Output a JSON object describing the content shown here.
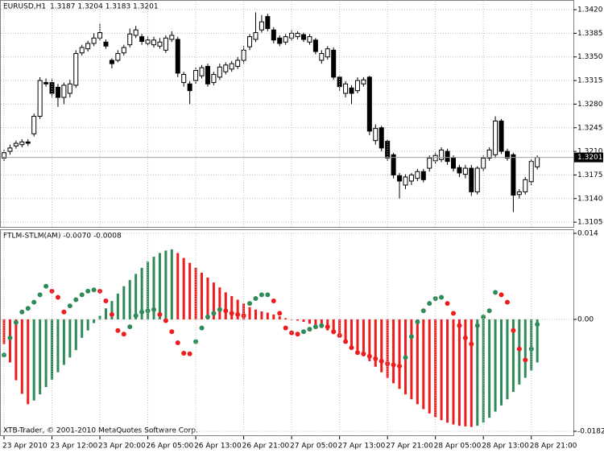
{
  "chart_data": [
    {
      "type": "candlestick",
      "title": "EURUSD,H1",
      "ohlc_label": "1.3187 1.3204 1.3183 1.3201",
      "bull_color": "#ffffff",
      "bear_color": "#000000",
      "last_price": 1.3201,
      "ylim": [
        1.3098,
        1.3432
      ],
      "yticks": [
        1.3105,
        {
          "value": 1.314,
          "label": "1.3140"
        },
        1.3175,
        {
          "value": 1.321,
          "label": "1.3210"
        },
        1.3245,
        {
          "value": 1.328,
          "label": "1.3280"
        },
        1.3315,
        {
          "value": 1.335,
          "label": "1.3350"
        },
        1.3385,
        {
          "value": 1.342,
          "label": "1.3420"
        }
      ],
      "grid": true,
      "open": [
        1.32,
        1.321,
        1.3218,
        1.322,
        1.3224,
        1.3236,
        1.3262,
        1.3312,
        1.3312,
        1.3305,
        1.329,
        1.3296,
        1.3308,
        1.3356,
        1.3362,
        1.337,
        1.3378,
        1.3372,
        1.3345,
        1.3345,
        1.3356,
        1.3368,
        1.3382,
        1.338,
        1.337,
        1.3368,
        1.3366,
        1.336,
        1.3376,
        1.3376,
        1.3312,
        1.331,
        1.3315,
        1.3322,
        1.3336,
        1.3312,
        1.332,
        1.3328,
        1.3332,
        1.3336,
        1.3345,
        1.3365,
        1.3376,
        1.339,
        1.341,
        1.339,
        1.3378,
        1.3372,
        1.3378,
        1.338,
        1.3383,
        1.3372,
        1.3375,
        1.3345,
        1.335,
        1.336,
        1.332,
        1.3296,
        1.3304,
        1.33,
        1.331,
        1.332,
        1.3226,
        1.3245,
        1.3225,
        1.3205,
        1.3174,
        1.316,
        1.3166,
        1.317,
        1.318,
        1.3185,
        1.3196,
        1.3198,
        1.321,
        1.32,
        1.3186,
        1.3176,
        1.3185,
        1.315,
        1.3185,
        1.32,
        1.3205,
        1.3255,
        1.321,
        1.3205,
        1.3146,
        1.315,
        1.3165,
        1.3187
      ],
      "high": [
        1.3212,
        1.322,
        1.3226,
        1.3228,
        1.3228,
        1.3266,
        1.332,
        1.3318,
        1.3318,
        1.331,
        1.3312,
        1.3316,
        1.336,
        1.3368,
        1.3374,
        1.3385,
        1.34,
        1.3376,
        1.3348,
        1.336,
        1.3368,
        1.3392,
        1.3396,
        1.3384,
        1.338,
        1.338,
        1.3378,
        1.3382,
        1.3388,
        1.338,
        1.3328,
        1.3314,
        1.3334,
        1.3338,
        1.334,
        1.3328,
        1.334,
        1.3342,
        1.3344,
        1.335,
        1.3366,
        1.3384,
        1.3416,
        1.3412,
        1.3414,
        1.3394,
        1.3382,
        1.3384,
        1.339,
        1.3388,
        1.3386,
        1.3384,
        1.3378,
        1.336,
        1.3366,
        1.3364,
        1.3322,
        1.3314,
        1.3308,
        1.332,
        1.332,
        1.3322,
        1.325,
        1.3248,
        1.3228,
        1.3208,
        1.3178,
        1.3176,
        1.3178,
        1.3184,
        1.3184,
        1.3204,
        1.3208,
        1.3216,
        1.3214,
        1.3204,
        1.319,
        1.319,
        1.319,
        1.3188,
        1.3204,
        1.3216,
        1.3262,
        1.3258,
        1.3214,
        1.3208,
        1.3154,
        1.3172,
        1.3198,
        1.3204
      ],
      "low": [
        1.3195,
        1.3205,
        1.3214,
        1.3216,
        1.3218,
        1.3232,
        1.3258,
        1.3306,
        1.329,
        1.3276,
        1.328,
        1.329,
        1.3304,
        1.3352,
        1.3358,
        1.3366,
        1.3374,
        1.3362,
        1.3333,
        1.3342,
        1.3352,
        1.3364,
        1.3378,
        1.3368,
        1.3366,
        1.3364,
        1.3362,
        1.3356,
        1.3372,
        1.332,
        1.3306,
        1.328,
        1.331,
        1.3318,
        1.3306,
        1.3308,
        1.3316,
        1.3324,
        1.3328,
        1.3332,
        1.334,
        1.336,
        1.3372,
        1.3386,
        1.3388,
        1.337,
        1.3366,
        1.3368,
        1.3374,
        1.3376,
        1.3372,
        1.3368,
        1.3354,
        1.334,
        1.3346,
        1.3316,
        1.33,
        1.329,
        1.328,
        1.3296,
        1.3306,
        1.3234,
        1.322,
        1.321,
        1.3196,
        1.317,
        1.314,
        1.3154,
        1.316,
        1.3166,
        1.3164,
        1.318,
        1.3192,
        1.3194,
        1.319,
        1.318,
        1.3172,
        1.317,
        1.3144,
        1.3146,
        1.318,
        1.3196,
        1.32,
        1.3206,
        1.3196,
        1.312,
        1.314,
        1.3146,
        1.316,
        1.3183
      ],
      "close": [
        1.3208,
        1.3215,
        1.3222,
        1.3224,
        1.3222,
        1.3262,
        1.3315,
        1.331,
        1.3296,
        1.329,
        1.3308,
        1.331,
        1.3355,
        1.3364,
        1.337,
        1.3378,
        1.3386,
        1.3366,
        1.334,
        1.3355,
        1.3364,
        1.3384,
        1.339,
        1.3373,
        1.3375,
        1.3375,
        1.3372,
        1.3378,
        1.3382,
        1.3326,
        1.3324,
        1.33,
        1.333,
        1.3334,
        1.331,
        1.3324,
        1.3335,
        1.3338,
        1.334,
        1.3345,
        1.336,
        1.338,
        1.3386,
        1.3402,
        1.3392,
        1.3375,
        1.337,
        1.338,
        1.3385,
        1.3385,
        1.3376,
        1.338,
        1.3358,
        1.3355,
        1.3362,
        1.332,
        1.3306,
        1.331,
        1.3296,
        1.3315,
        1.3316,
        1.324,
        1.3244,
        1.3215,
        1.32,
        1.3175,
        1.3166,
        1.3172,
        1.3175,
        1.318,
        1.3168,
        1.32,
        1.3204,
        1.3212,
        1.3195,
        1.3185,
        1.3178,
        1.3185,
        1.315,
        1.3185,
        1.32,
        1.3212,
        1.3255,
        1.321,
        1.32,
        1.3145,
        1.315,
        1.3168,
        1.3195,
        1.3201
      ]
    },
    {
      "type": "bar",
      "title": "FTLM-STLM(AM) -0.0070 -0.0008",
      "annotation": "XTB-Trader, © 2001-2010 MetaQuotes Software Corp.",
      "rising_color": "#2e8b57",
      "falling_color": "#ee1c1c",
      "ylim": [
        -0.0182,
        0.014
      ],
      "yticks": [
        -0.0182,
        {
          "value": 0,
          "label": "0.00"
        },
        0.014
      ],
      "grid": true,
      "xticks": [
        {
          "value": 0,
          "label": "23 Apr 2010"
        },
        {
          "value": 8,
          "label": "23 Apr 12:00"
        },
        {
          "value": 16,
          "label": "23 Apr 20:00"
        },
        {
          "value": 24,
          "label": "26 Apr 05:00"
        },
        {
          "value": 32,
          "label": "26 Apr 13:00"
        },
        {
          "value": 40,
          "label": "26 Apr 21:00"
        },
        {
          "value": 48,
          "label": "27 Apr 05:00"
        },
        {
          "value": 56,
          "label": "27 Apr 13:00"
        },
        {
          "value": 64,
          "label": "27 Apr 21:00"
        },
        {
          "value": 72,
          "label": "28 Apr 05:00"
        },
        {
          "value": 80,
          "label": "28 Apr 13:00"
        },
        {
          "value": 88,
          "label": "28 Apr 21:00"
        }
      ],
      "bars": [
        -0.004,
        -0.007,
        -0.0099,
        -0.0121,
        -0.0138,
        -0.0132,
        -0.0122,
        -0.011,
        -0.0098,
        -0.0086,
        -0.0074,
        -0.0062,
        -0.005,
        -0.003,
        -0.0018,
        -0.0006,
        0.0006,
        0.0018,
        0.003,
        0.0042,
        0.0054,
        0.0064,
        0.0074,
        0.0084,
        0.0094,
        0.0102,
        0.0108,
        0.0112,
        0.0114,
        0.0108,
        0.01,
        0.0092,
        0.0084,
        0.0076,
        0.0068,
        0.006,
        0.0052,
        0.0044,
        0.0038,
        0.0032,
        0.0026,
        0.002,
        0.0016,
        0.0013,
        0.0011,
        0.0008,
        0.0005,
        0.0002,
        0.0,
        -0.0002,
        -0.0004,
        -0.0007,
        -0.001,
        -0.0014,
        -0.0018,
        -0.0024,
        -0.003,
        -0.0037,
        -0.0044,
        -0.0052,
        -0.006,
        -0.0068,
        -0.0077,
        -0.0086,
        -0.0095,
        -0.0104,
        -0.0113,
        -0.0122,
        -0.013,
        -0.0138,
        -0.0146,
        -0.0153,
        -0.0159,
        -0.0164,
        -0.0168,
        -0.0171,
        -0.0173,
        -0.0174,
        -0.0175,
        -0.0173,
        -0.0168,
        -0.016,
        -0.015,
        -0.014,
        -0.013,
        -0.0118,
        -0.0106,
        -0.0095,
        -0.0083,
        -0.007
      ],
      "dots": [
        -0.0058,
        -0.003,
        -0.0005,
        0.0012,
        0.0018,
        0.0028,
        0.004,
        0.0054,
        0.0046,
        0.0036,
        0.0012,
        0.0022,
        0.0032,
        0.004,
        0.0046,
        0.0048,
        0.0046,
        0.003,
        0.0008,
        -0.0018,
        -0.0024,
        -0.0012,
        0.0006,
        0.0012,
        0.0014,
        0.0016,
        0.0008,
        -0.0002,
        -0.002,
        -0.0038,
        -0.0055,
        -0.0056,
        -0.0036,
        -0.0014,
        0.0004,
        0.001,
        0.0016,
        0.0014,
        0.001,
        0.0008,
        0.0006,
        0.0026,
        0.0034,
        0.004,
        0.004,
        0.003,
        0.001,
        -0.0014,
        -0.0022,
        -0.0024,
        -0.002,
        -0.0016,
        -0.0012,
        -0.001,
        -0.0012,
        -0.002,
        -0.0026,
        -0.0036,
        -0.0046,
        -0.0054,
        -0.0056,
        -0.006,
        -0.0064,
        -0.0068,
        -0.0072,
        -0.0074,
        -0.0076,
        -0.0062,
        -0.0028,
        -0.0004,
        0.0014,
        0.0026,
        0.0034,
        0.0036,
        0.0026,
        0.001,
        -0.001,
        -0.003,
        -0.004,
        -0.001,
        0.0004,
        0.0014,
        0.0044,
        0.004,
        0.0028,
        -0.0018,
        -0.0048,
        -0.0066,
        -0.0048,
        -0.0008
      ]
    }
  ]
}
